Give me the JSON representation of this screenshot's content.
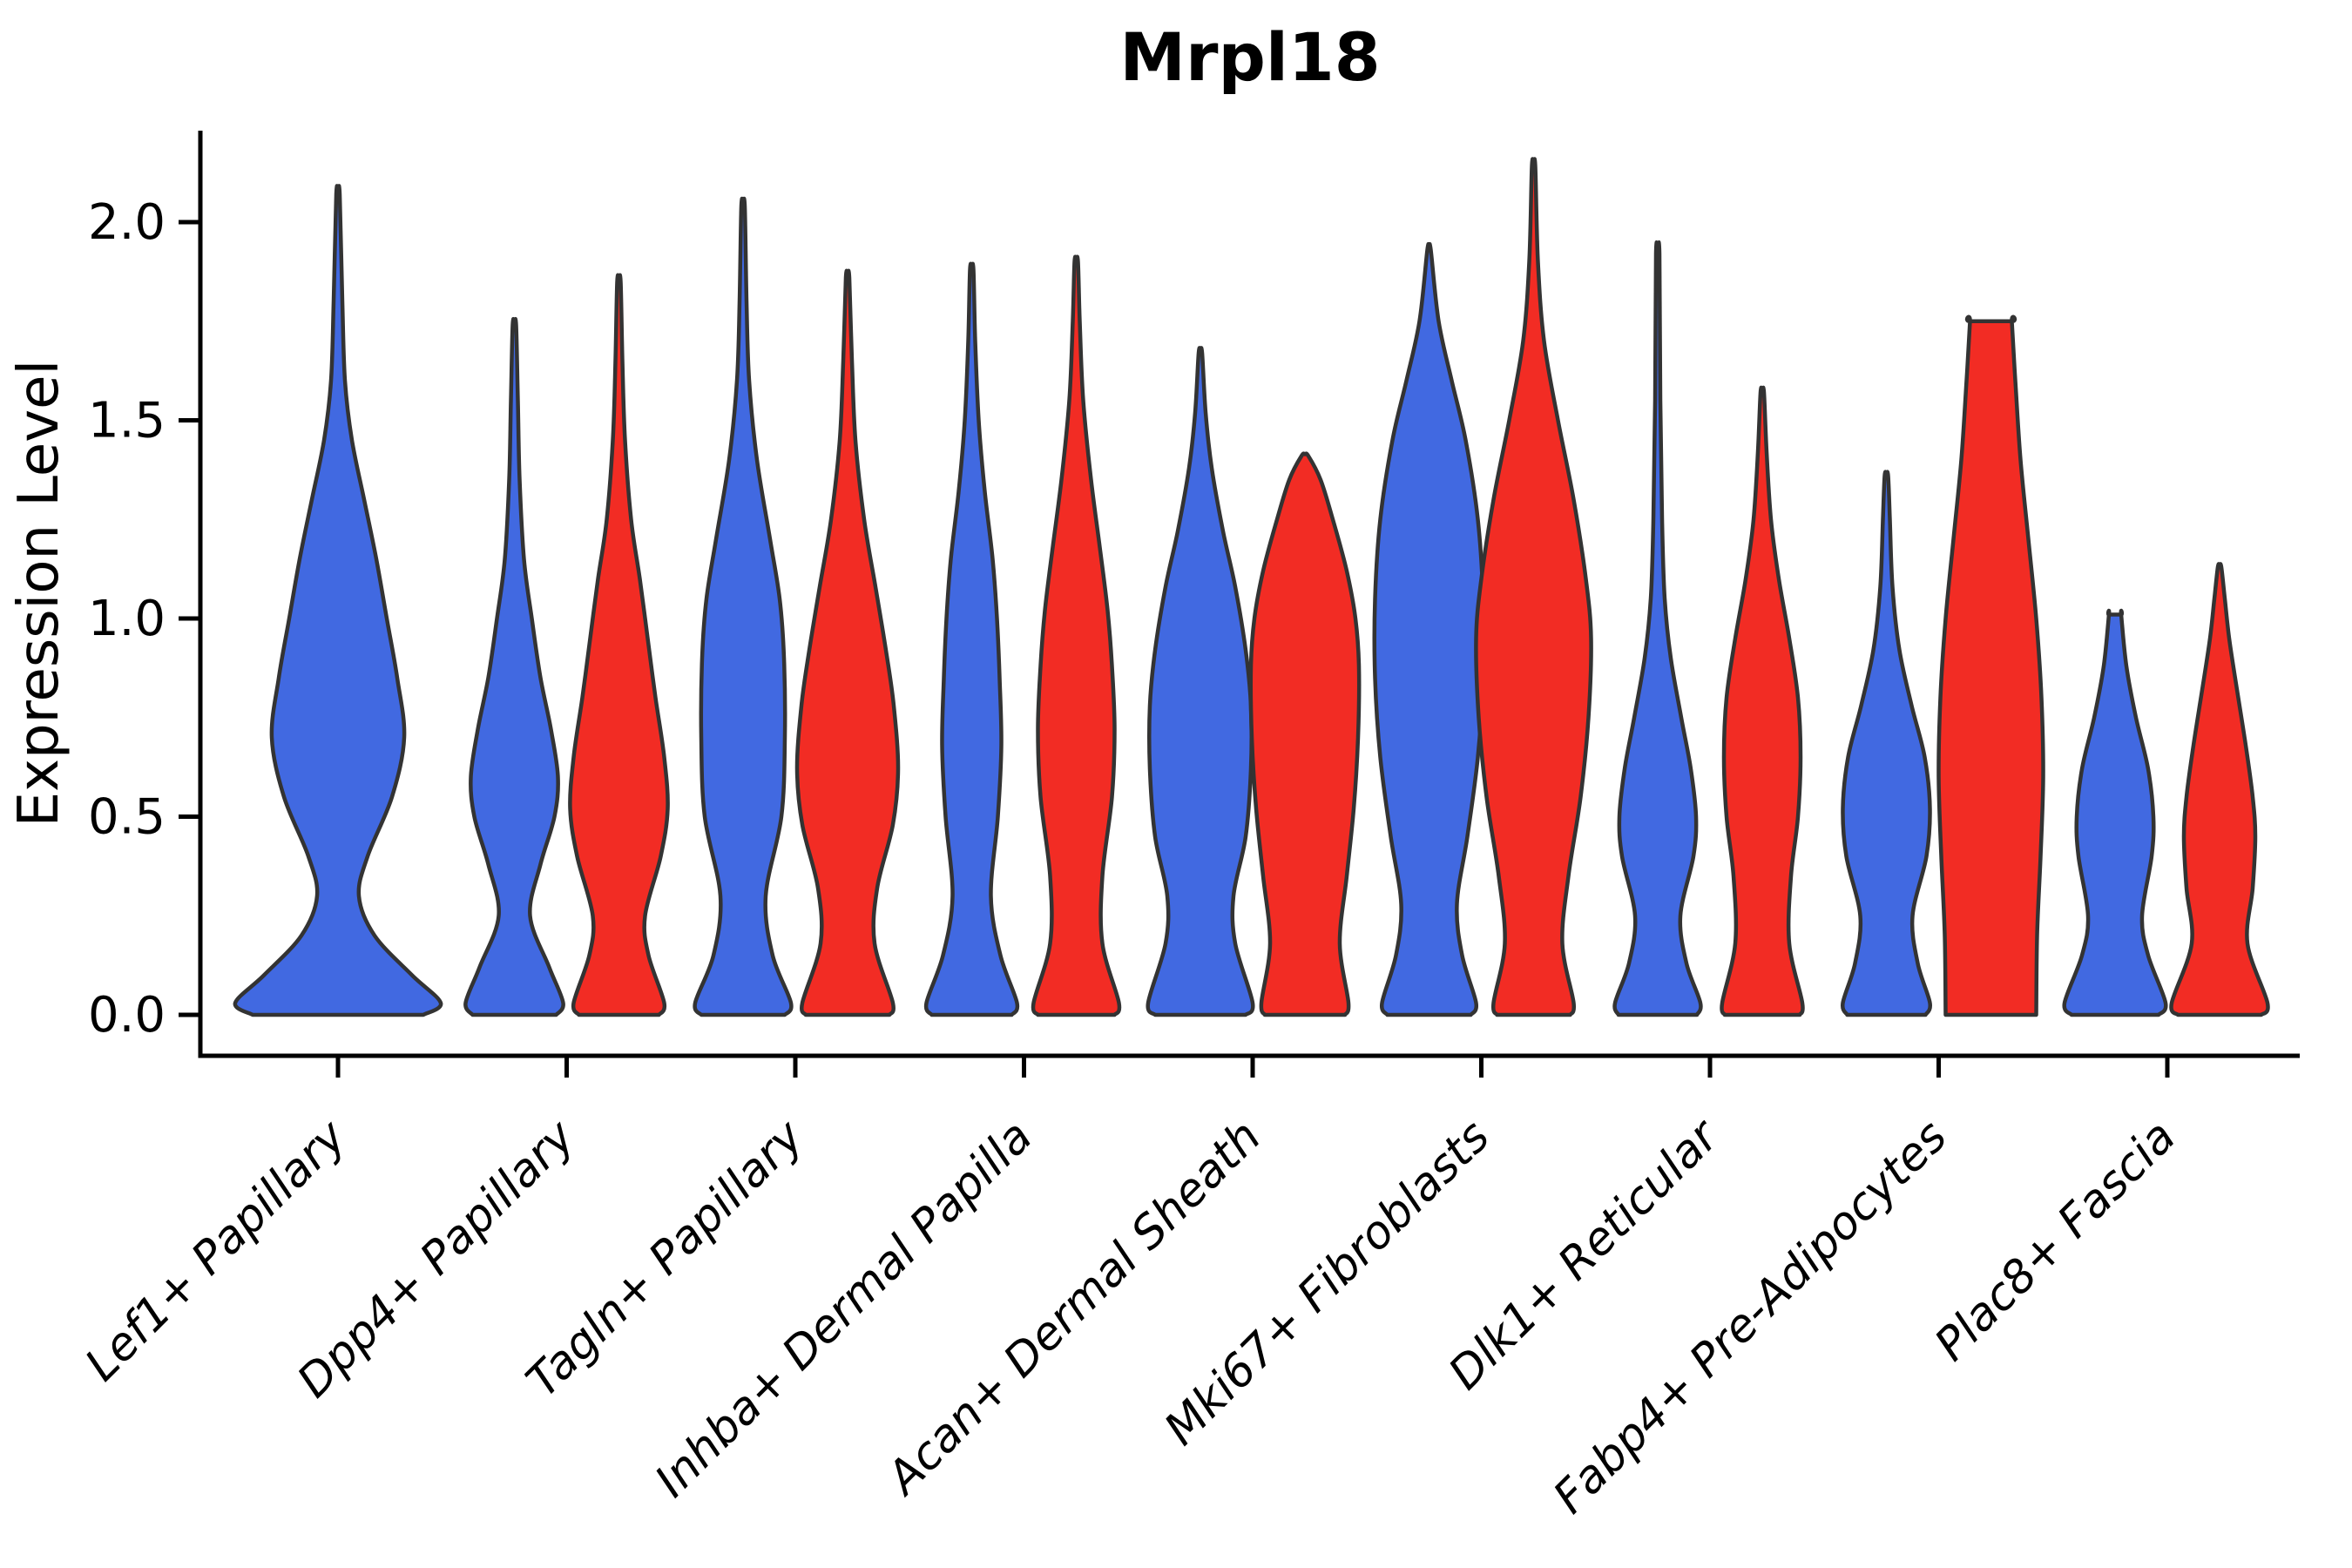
{
  "title": "Mrpl18",
  "axis": {
    "ylabel": "Expression Level",
    "ytick_labels": [
      "0.0",
      "0.5",
      "1.0",
      "1.5",
      "2.0"
    ]
  },
  "chart_data": {
    "type": "violin",
    "title": "Mrpl18",
    "xlabel": "",
    "ylabel": "Expression Level",
    "ylim": [
      0,
      2.25
    ],
    "yticks": [
      0.0,
      0.5,
      1.0,
      1.5,
      2.0
    ],
    "grid": false,
    "legend_position": "none",
    "x_tick_rotation": 45,
    "categories": [
      "Lef1+ Papillary",
      "Dpp4+ Papillary",
      "Tagln+ Papillary",
      "Inhba+ Dermal Papilla",
      "Acan+ Dermal Sheath",
      "Mki67+ Fibroblasts",
      "Dlk1+ Reticular",
      "Fabp4+ Pre-Adipocytes",
      "Plac8+ Fascia"
    ],
    "series": [
      {
        "name": "blue",
        "color": "#4169E1"
      },
      {
        "name": "red",
        "color": "#F22C24"
      }
    ],
    "outline_color": "#333333",
    "violins": [
      {
        "category_index": 0,
        "series": 0,
        "position": "full",
        "max_value": 2.07,
        "top": "point",
        "profile": [
          [
            0,
            98
          ],
          [
            0.03,
            118
          ],
          [
            0.1,
            85
          ],
          [
            0.2,
            42
          ],
          [
            0.3,
            24
          ],
          [
            0.4,
            34
          ],
          [
            0.55,
            62
          ],
          [
            0.7,
            76
          ],
          [
            0.85,
            68
          ],
          [
            1.0,
            56
          ],
          [
            1.15,
            44
          ],
          [
            1.3,
            30
          ],
          [
            1.45,
            16
          ],
          [
            1.6,
            8
          ],
          [
            1.8,
            5
          ],
          [
            2.07,
            2
          ]
        ]
      },
      {
        "category_index": 1,
        "series": 0,
        "position": "left",
        "max_value": 1.74,
        "top": "point",
        "profile": [
          [
            0,
            48
          ],
          [
            0.03,
            56
          ],
          [
            0.12,
            40
          ],
          [
            0.25,
            18
          ],
          [
            0.38,
            30
          ],
          [
            0.5,
            46
          ],
          [
            0.6,
            50
          ],
          [
            0.72,
            42
          ],
          [
            0.85,
            30
          ],
          [
            1.0,
            20
          ],
          [
            1.15,
            11
          ],
          [
            1.35,
            6
          ],
          [
            1.55,
            4
          ],
          [
            1.74,
            2
          ]
        ]
      },
      {
        "category_index": 1,
        "series": 1,
        "position": "right",
        "max_value": 1.85,
        "top": "point",
        "profile": [
          [
            0,
            46
          ],
          [
            0.03,
            52
          ],
          [
            0.15,
            34
          ],
          [
            0.25,
            30
          ],
          [
            0.4,
            48
          ],
          [
            0.52,
            56
          ],
          [
            0.65,
            52
          ],
          [
            0.8,
            42
          ],
          [
            0.95,
            33
          ],
          [
            1.1,
            24
          ],
          [
            1.25,
            14
          ],
          [
            1.45,
            7
          ],
          [
            1.65,
            4
          ],
          [
            1.85,
            2
          ]
        ]
      },
      {
        "category_index": 2,
        "series": 0,
        "position": "left",
        "max_value": 2.04,
        "top": "point",
        "profile": [
          [
            0,
            48
          ],
          [
            0.03,
            55
          ],
          [
            0.15,
            34
          ],
          [
            0.3,
            26
          ],
          [
            0.5,
            44
          ],
          [
            0.7,
            48
          ],
          [
            0.9,
            47
          ],
          [
            1.05,
            42
          ],
          [
            1.2,
            31
          ],
          [
            1.4,
            16
          ],
          [
            1.6,
            7
          ],
          [
            1.8,
            4
          ],
          [
            2.04,
            2
          ]
        ]
      },
      {
        "category_index": 2,
        "series": 1,
        "position": "right",
        "max_value": 1.86,
        "top": "point",
        "profile": [
          [
            0,
            48
          ],
          [
            0.03,
            52
          ],
          [
            0.18,
            31
          ],
          [
            0.32,
            34
          ],
          [
            0.48,
            52
          ],
          [
            0.62,
            58
          ],
          [
            0.78,
            53
          ],
          [
            0.92,
            44
          ],
          [
            1.08,
            32
          ],
          [
            1.25,
            19
          ],
          [
            1.45,
            9
          ],
          [
            1.65,
            5
          ],
          [
            1.86,
            2
          ]
        ]
      },
      {
        "category_index": 3,
        "series": 0,
        "position": "left",
        "max_value": 1.88,
        "top": "point",
        "profile": [
          [
            0,
            46
          ],
          [
            0.03,
            52
          ],
          [
            0.15,
            33
          ],
          [
            0.3,
            22
          ],
          [
            0.5,
            30
          ],
          [
            0.68,
            34
          ],
          [
            0.85,
            32
          ],
          [
            1.0,
            29
          ],
          [
            1.15,
            24
          ],
          [
            1.32,
            15
          ],
          [
            1.5,
            8
          ],
          [
            1.7,
            4
          ],
          [
            1.88,
            2
          ]
        ]
      },
      {
        "category_index": 3,
        "series": 1,
        "position": "right",
        "max_value": 1.9,
        "top": "point",
        "profile": [
          [
            0,
            44
          ],
          [
            0.03,
            49
          ],
          [
            0.18,
            30
          ],
          [
            0.35,
            30
          ],
          [
            0.55,
            41
          ],
          [
            0.72,
            44
          ],
          [
            0.88,
            41
          ],
          [
            1.02,
            36
          ],
          [
            1.18,
            27
          ],
          [
            1.35,
            17
          ],
          [
            1.55,
            8
          ],
          [
            1.75,
            4
          ],
          [
            1.9,
            2
          ]
        ]
      },
      {
        "category_index": 4,
        "series": 0,
        "position": "left",
        "max_value": 1.67,
        "top": "point",
        "profile": [
          [
            0,
            52
          ],
          [
            0.03,
            60
          ],
          [
            0.18,
            40
          ],
          [
            0.3,
            38
          ],
          [
            0.45,
            52
          ],
          [
            0.62,
            58
          ],
          [
            0.78,
            58
          ],
          [
            0.92,
            52
          ],
          [
            1.08,
            40
          ],
          [
            1.22,
            26
          ],
          [
            1.38,
            13
          ],
          [
            1.52,
            6
          ],
          [
            1.67,
            2
          ]
        ]
      },
      {
        "category_index": 4,
        "series": 1,
        "position": "right",
        "max_value": 1.41,
        "top": "point",
        "profile": [
          [
            0,
            46
          ],
          [
            0.03,
            50
          ],
          [
            0.18,
            40
          ],
          [
            0.35,
            48
          ],
          [
            0.52,
            56
          ],
          [
            0.7,
            61
          ],
          [
            0.88,
            62
          ],
          [
            1.0,
            58
          ],
          [
            1.12,
            48
          ],
          [
            1.25,
            32
          ],
          [
            1.35,
            18
          ],
          [
            1.41,
            4
          ]
        ]
      },
      {
        "category_index": 5,
        "series": 0,
        "position": "left",
        "max_value": 1.93,
        "top": "point",
        "profile": [
          [
            0,
            48
          ],
          [
            0.03,
            54
          ],
          [
            0.15,
            38
          ],
          [
            0.28,
            32
          ],
          [
            0.45,
            44
          ],
          [
            0.65,
            56
          ],
          [
            0.85,
            62
          ],
          [
            1.05,
            62
          ],
          [
            1.25,
            56
          ],
          [
            1.45,
            42
          ],
          [
            1.6,
            26
          ],
          [
            1.75,
            11
          ],
          [
            1.93,
            2
          ]
        ]
      },
      {
        "category_index": 5,
        "series": 1,
        "position": "right",
        "max_value": 2.14,
        "top": "point",
        "profile": [
          [
            0,
            42
          ],
          [
            0.03,
            46
          ],
          [
            0.18,
            33
          ],
          [
            0.35,
            40
          ],
          [
            0.55,
            54
          ],
          [
            0.75,
            63
          ],
          [
            0.95,
            66
          ],
          [
            1.1,
            60
          ],
          [
            1.3,
            46
          ],
          [
            1.5,
            28
          ],
          [
            1.7,
            12
          ],
          [
            1.9,
            5
          ],
          [
            2.14,
            2
          ]
        ]
      },
      {
        "category_index": 6,
        "series": 0,
        "position": "left",
        "max_value": 1.92,
        "top": "point",
        "profile": [
          [
            0,
            45
          ],
          [
            0.03,
            49
          ],
          [
            0.13,
            33
          ],
          [
            0.25,
            26
          ],
          [
            0.4,
            41
          ],
          [
            0.5,
            44
          ],
          [
            0.62,
            38
          ],
          [
            0.75,
            27
          ],
          [
            0.9,
            15
          ],
          [
            1.05,
            8
          ],
          [
            1.25,
            5
          ],
          [
            1.55,
            3
          ],
          [
            1.92,
            2
          ]
        ]
      },
      {
        "category_index": 6,
        "series": 1,
        "position": "right",
        "max_value": 1.57,
        "top": "point",
        "profile": [
          [
            0,
            43
          ],
          [
            0.03,
            46
          ],
          [
            0.18,
            31
          ],
          [
            0.35,
            33
          ],
          [
            0.5,
            41
          ],
          [
            0.65,
            44
          ],
          [
            0.8,
            41
          ],
          [
            0.95,
            31
          ],
          [
            1.1,
            19
          ],
          [
            1.25,
            10
          ],
          [
            1.42,
            5
          ],
          [
            1.57,
            2
          ]
        ]
      },
      {
        "category_index": 7,
        "series": 0,
        "position": "left",
        "max_value": 1.36,
        "top": "point",
        "profile": [
          [
            0,
            45
          ],
          [
            0.03,
            50
          ],
          [
            0.13,
            36
          ],
          [
            0.25,
            30
          ],
          [
            0.4,
            46
          ],
          [
            0.52,
            50
          ],
          [
            0.65,
            44
          ],
          [
            0.78,
            29
          ],
          [
            0.92,
            15
          ],
          [
            1.08,
            7
          ],
          [
            1.25,
            4
          ],
          [
            1.36,
            2
          ]
        ]
      },
      {
        "category_index": 7,
        "series": 1,
        "position": "right",
        "max_value": 1.75,
        "top": "flat",
        "profile": [
          [
            0,
            52
          ],
          [
            0.2,
            53
          ],
          [
            0.4,
            57
          ],
          [
            0.6,
            60
          ],
          [
            0.8,
            58
          ],
          [
            1.0,
            52
          ],
          [
            1.2,
            43
          ],
          [
            1.4,
            34
          ],
          [
            1.6,
            28
          ],
          [
            1.75,
            24
          ]
        ]
      },
      {
        "category_index": 8,
        "series": 0,
        "position": "left",
        "max_value": 1.01,
        "top": "flat",
        "profile": [
          [
            0,
            50
          ],
          [
            0.03,
            58
          ],
          [
            0.15,
            38
          ],
          [
            0.25,
            31
          ],
          [
            0.4,
            42
          ],
          [
            0.5,
            44
          ],
          [
            0.62,
            38
          ],
          [
            0.75,
            24
          ],
          [
            0.88,
            13
          ],
          [
            1.01,
            7
          ]
        ]
      },
      {
        "category_index": 8,
        "series": 1,
        "position": "right",
        "max_value": 1.13,
        "top": "point",
        "profile": [
          [
            0,
            48
          ],
          [
            0.03,
            55
          ],
          [
            0.18,
            32
          ],
          [
            0.32,
            38
          ],
          [
            0.45,
            41
          ],
          [
            0.55,
            38
          ],
          [
            0.68,
            30
          ],
          [
            0.82,
            20
          ],
          [
            0.95,
            11
          ],
          [
            1.05,
            6
          ],
          [
            1.13,
            2
          ]
        ]
      }
    ]
  }
}
